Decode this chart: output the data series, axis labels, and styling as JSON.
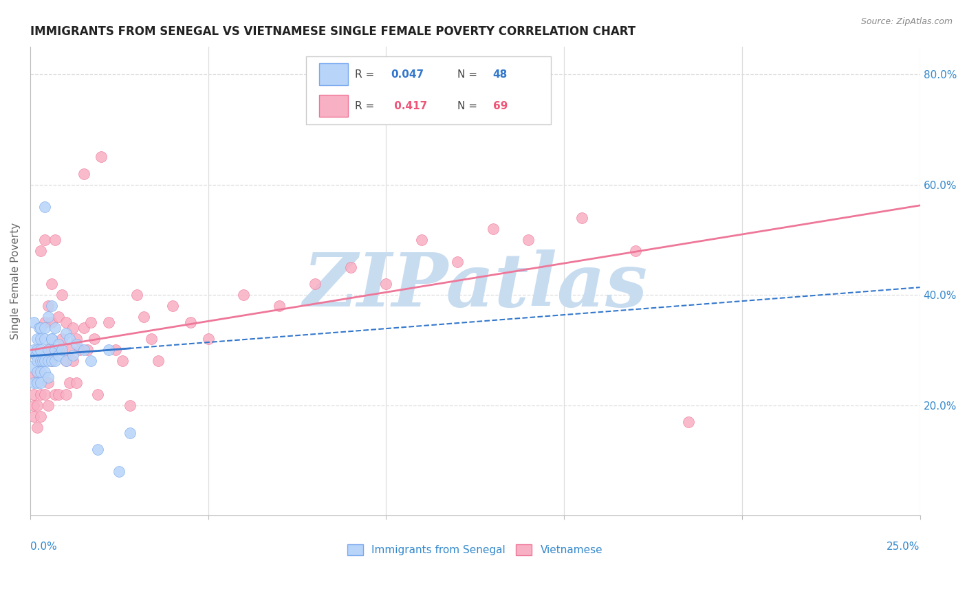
{
  "title": "IMMIGRANTS FROM SENEGAL VS VIETNAMESE SINGLE FEMALE POVERTY CORRELATION CHART",
  "source": "Source: ZipAtlas.com",
  "ylabel": "Single Female Poverty",
  "legend_label1": "Immigrants from Senegal",
  "legend_label2": "Vietnamese",
  "R1": 0.047,
  "N1": 48,
  "R2": 0.417,
  "N2": 69,
  "color_senegal_fill": "#b8d4f8",
  "color_senegal_edge": "#7aaaee",
  "color_viet_fill": "#f8b0c4",
  "color_viet_edge": "#ee7799",
  "color_blue_text": "#3377cc",
  "color_pink_text": "#ee5577",
  "color_watermark": "#c8dcf0",
  "color_title": "#222222",
  "color_source": "#888888",
  "color_axis": "#3388cc",
  "color_grid": "#dddddd",
  "xlim": [
    0,
    0.25
  ],
  "ylim": [
    0,
    0.85
  ],
  "yticks": [
    0.2,
    0.4,
    0.6,
    0.8
  ],
  "ytick_labels": [
    "20.0%",
    "40.0%",
    "60.0%",
    "80.0%"
  ],
  "senegal_x": [
    0.0005,
    0.001,
    0.001,
    0.001,
    0.0015,
    0.002,
    0.002,
    0.002,
    0.002,
    0.002,
    0.0025,
    0.003,
    0.003,
    0.003,
    0.003,
    0.003,
    0.003,
    0.0035,
    0.004,
    0.004,
    0.004,
    0.004,
    0.004,
    0.005,
    0.005,
    0.005,
    0.005,
    0.006,
    0.006,
    0.006,
    0.006,
    0.007,
    0.007,
    0.007,
    0.008,
    0.008,
    0.009,
    0.01,
    0.01,
    0.011,
    0.012,
    0.013,
    0.015,
    0.017,
    0.019,
    0.022,
    0.025,
    0.028
  ],
  "senegal_y": [
    0.27,
    0.35,
    0.3,
    0.24,
    0.29,
    0.32,
    0.28,
    0.26,
    0.3,
    0.24,
    0.34,
    0.3,
    0.28,
    0.32,
    0.26,
    0.34,
    0.24,
    0.28,
    0.34,
    0.28,
    0.32,
    0.26,
    0.56,
    0.36,
    0.3,
    0.28,
    0.25,
    0.38,
    0.32,
    0.28,
    0.32,
    0.3,
    0.34,
    0.28,
    0.31,
    0.29,
    0.3,
    0.33,
    0.28,
    0.32,
    0.29,
    0.31,
    0.3,
    0.28,
    0.12,
    0.3,
    0.08,
    0.15
  ],
  "vietnamese_x": [
    0.0005,
    0.001,
    0.001,
    0.001,
    0.002,
    0.002,
    0.002,
    0.003,
    0.003,
    0.003,
    0.003,
    0.004,
    0.004,
    0.004,
    0.005,
    0.005,
    0.005,
    0.005,
    0.006,
    0.006,
    0.006,
    0.007,
    0.007,
    0.007,
    0.008,
    0.008,
    0.008,
    0.009,
    0.009,
    0.01,
    0.01,
    0.01,
    0.011,
    0.011,
    0.012,
    0.012,
    0.013,
    0.013,
    0.014,
    0.015,
    0.015,
    0.016,
    0.017,
    0.018,
    0.019,
    0.02,
    0.022,
    0.024,
    0.026,
    0.028,
    0.03,
    0.032,
    0.034,
    0.036,
    0.04,
    0.045,
    0.05,
    0.06,
    0.07,
    0.08,
    0.09,
    0.1,
    0.11,
    0.12,
    0.13,
    0.14,
    0.155,
    0.17,
    0.185
  ],
  "vietnamese_y": [
    0.25,
    0.22,
    0.18,
    0.2,
    0.26,
    0.2,
    0.16,
    0.28,
    0.22,
    0.18,
    0.48,
    0.5,
    0.35,
    0.22,
    0.38,
    0.3,
    0.24,
    0.2,
    0.42,
    0.35,
    0.28,
    0.3,
    0.22,
    0.5,
    0.36,
    0.3,
    0.22,
    0.4,
    0.32,
    0.35,
    0.28,
    0.22,
    0.3,
    0.24,
    0.34,
    0.28,
    0.32,
    0.24,
    0.3,
    0.62,
    0.34,
    0.3,
    0.35,
    0.32,
    0.22,
    0.65,
    0.35,
    0.3,
    0.28,
    0.2,
    0.4,
    0.36,
    0.32,
    0.28,
    0.38,
    0.35,
    0.32,
    0.4,
    0.38,
    0.42,
    0.45,
    0.42,
    0.5,
    0.46,
    0.52,
    0.5,
    0.54,
    0.48,
    0.17
  ]
}
